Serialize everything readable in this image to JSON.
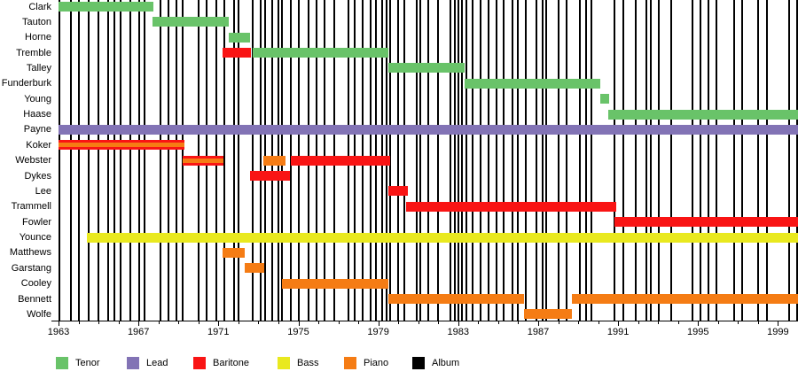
{
  "chart_data": {
    "type": "timeline",
    "title": "",
    "description": "Group membership timeline by vocal/instrument role; vertical black lines mark album releases",
    "x_axis": {
      "start": 1963,
      "end": 2000,
      "major_ticks": [
        1963,
        1967,
        1971,
        1975,
        1979,
        1983,
        1987,
        1991,
        1995,
        1999
      ],
      "minor_tick_interval": 1
    },
    "roles": [
      {
        "name": "Tenor",
        "color": "#69c369"
      },
      {
        "name": "Lead",
        "color": "#8273b5"
      },
      {
        "name": "Baritone",
        "color": "#f91414"
      },
      {
        "name": "Bass",
        "color": "#e9e91f"
      },
      {
        "name": "Piano",
        "color": "#f57c14"
      },
      {
        "name": "Album",
        "color": "#000000"
      }
    ],
    "members": [
      {
        "name": "Clark",
        "bars": [
          {
            "role": "Tenor",
            "start": 1963.0,
            "end": 1967.75
          }
        ]
      },
      {
        "name": "Tauton",
        "bars": [
          {
            "role": "Tenor",
            "start": 1967.7,
            "end": 1971.5
          }
        ]
      },
      {
        "name": "Horne",
        "bars": [
          {
            "role": "Tenor",
            "start": 1971.5,
            "end": 1972.6
          }
        ]
      },
      {
        "name": "Tremble",
        "bars": [
          {
            "role": "Baritone",
            "start": 1971.2,
            "end": 1972.65
          },
          {
            "role": "Tenor",
            "start": 1972.7,
            "end": 1979.5
          }
        ]
      },
      {
        "name": "Talley",
        "bars": [
          {
            "role": "Tenor",
            "start": 1979.5,
            "end": 1983.3
          }
        ]
      },
      {
        "name": "Funderburk",
        "bars": [
          {
            "role": "Tenor",
            "start": 1983.3,
            "end": 1990.1
          }
        ]
      },
      {
        "name": "Young",
        "bars": [
          {
            "role": "Tenor",
            "start": 1990.1,
            "end": 1990.55
          }
        ]
      },
      {
        "name": "Haase",
        "bars": [
          {
            "role": "Tenor",
            "start": 1990.5,
            "end": 2000.0
          }
        ]
      },
      {
        "name": "Payne",
        "bars": [
          {
            "role": "Lead",
            "start": 1963.0,
            "end": 2000.0
          }
        ]
      },
      {
        "name": "Koker",
        "bars": [
          {
            "role": "Baritone+Piano",
            "start": 1963.0,
            "end": 1969.3
          }
        ]
      },
      {
        "name": "Webster",
        "bars": [
          {
            "role": "Baritone+Piano",
            "start": 1969.2,
            "end": 1971.25
          },
          {
            "role": "Piano",
            "start": 1973.25,
            "end": 1974.35
          },
          {
            "role": "Baritone",
            "start": 1974.6,
            "end": 1979.6
          }
        ]
      },
      {
        "name": "Dykes",
        "bars": [
          {
            "role": "Baritone",
            "start": 1972.6,
            "end": 1974.6
          }
        ]
      },
      {
        "name": "Lee",
        "bars": [
          {
            "role": "Baritone",
            "start": 1979.5,
            "end": 1980.5
          }
        ]
      },
      {
        "name": "Trammell",
        "bars": [
          {
            "role": "Baritone",
            "start": 1980.4,
            "end": 1990.9
          }
        ]
      },
      {
        "name": "Fowler",
        "bars": [
          {
            "role": "Baritone",
            "start": 1990.8,
            "end": 2000.0
          }
        ]
      },
      {
        "name": "Younce",
        "bars": [
          {
            "role": "Bass",
            "start": 1964.4,
            "end": 2000.0
          }
        ]
      },
      {
        "name": "Matthews",
        "bars": [
          {
            "role": "Piano",
            "start": 1971.2,
            "end": 1972.3
          }
        ]
      },
      {
        "name": "Garstang",
        "bars": [
          {
            "role": "Piano",
            "start": 1972.3,
            "end": 1973.3
          }
        ]
      },
      {
        "name": "Cooley",
        "bars": [
          {
            "role": "Piano",
            "start": 1974.2,
            "end": 1979.5
          }
        ]
      },
      {
        "name": "Bennett",
        "bars": [
          {
            "role": "Piano",
            "start": 1979.5,
            "end": 1986.3
          },
          {
            "role": "Piano",
            "start": 1988.7,
            "end": 2000.0
          }
        ]
      },
      {
        "name": "Wolfe",
        "bars": [
          {
            "role": "Piano",
            "start": 1986.3,
            "end": 1988.7
          }
        ]
      }
    ],
    "albums": [
      1963.05,
      1963.6,
      1964.0,
      1964.5,
      1965.0,
      1965.5,
      1965.8,
      1966.1,
      1966.6,
      1967.05,
      1967.3,
      1968.1,
      1968.5,
      1968.9,
      1969.2,
      1970.0,
      1970.4,
      1970.9,
      1971.3,
      1971.8,
      1972.0,
      1972.7,
      1973.1,
      1973.35,
      1973.7,
      1974.0,
      1974.2,
      1974.6,
      1975.0,
      1975.5,
      1975.9,
      1976.3,
      1976.8,
      1977.5,
      1977.8,
      1978.2,
      1978.6,
      1978.9,
      1979.2,
      1979.4,
      1979.6,
      1980.0,
      1980.3,
      1980.9,
      1981.1,
      1981.5,
      1982.0,
      1982.6,
      1982.85,
      1983.0,
      1983.2,
      1983.4,
      1983.7,
      1984.1,
      1984.5,
      1984.9,
      1985.25,
      1985.7,
      1986.0,
      1986.4,
      1986.9,
      1987.2,
      1987.4,
      1988.0,
      1988.4,
      1989.1,
      1989.4,
      1989.65,
      1990.8,
      1991.25,
      1991.9,
      1992.4,
      1992.65,
      1993.05,
      1993.65,
      1994.7,
      1995.1,
      1995.5,
      1995.9,
      1996.8,
      1997.2,
      1998.0,
      1998.45,
      1999.55,
      1999.97
    ]
  },
  "legend": {
    "items": [
      {
        "label": "Tenor",
        "color": "#69c369"
      },
      {
        "label": "Lead",
        "color": "#8273b5"
      },
      {
        "label": "Baritone",
        "color": "#f91414"
      },
      {
        "label": "Bass",
        "color": "#e9e91f"
      },
      {
        "label": "Piano",
        "color": "#f57c14"
      },
      {
        "label": "Album",
        "color": "#000000"
      }
    ]
  }
}
